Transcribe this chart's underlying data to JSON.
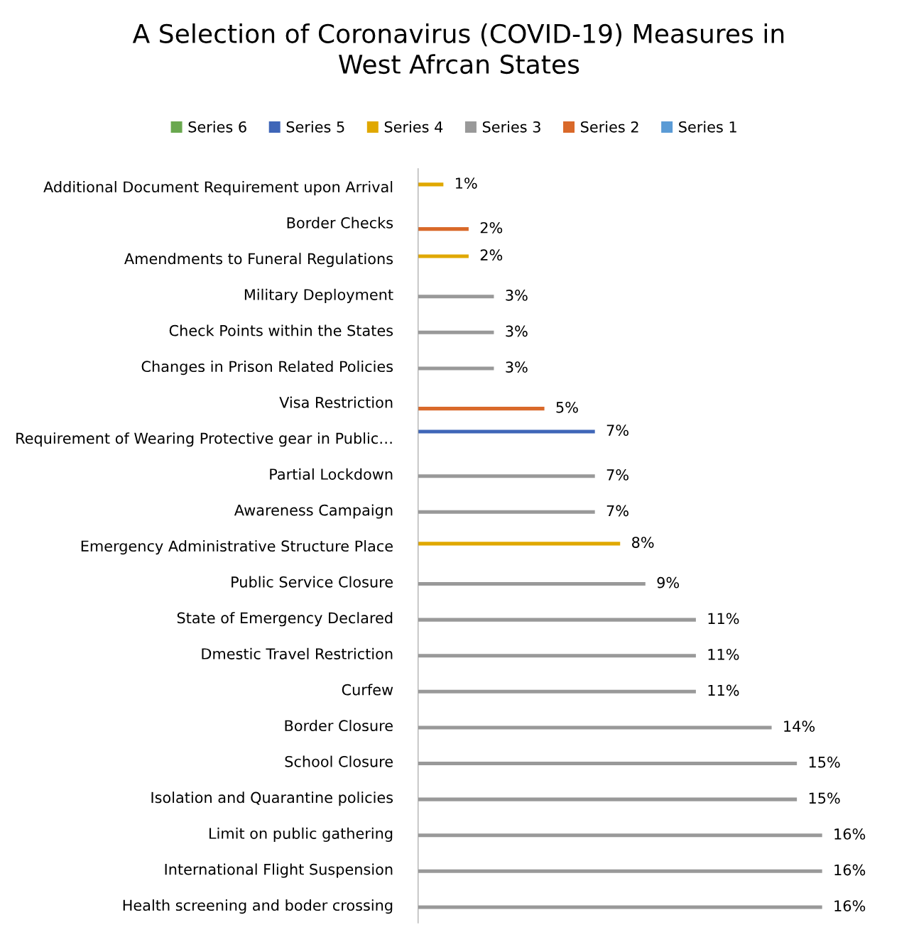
{
  "chart_data": {
    "type": "bar",
    "orientation": "horizontal",
    "title": "A Selection of Coronavirus (COVID-19) Measures in\nWest Afrcan States",
    "categories": [
      "Additional Document Requirement upon Arrival",
      "Border Checks",
      "Amendments to Funeral Regulations",
      "Military Deployment",
      "Check Points within the States",
      "Changes in Prison Related Policies",
      "Visa Restriction",
      "Requirement of Wearing Protective gear in Public…",
      "Partial Lockdown",
      "Awareness Campaign",
      "Emergency Administrative Structure Place",
      "Public Service Closure",
      "State of Emergency Declared",
      "Dmestic Travel Restriction",
      "Curfew",
      "Border Closure",
      "School Closure",
      "Isolation and Quarantine policies",
      "Limit on public gathering",
      "International Flight Suspension",
      "Health screening and boder crossing"
    ],
    "series": [
      {
        "name": "Series 1",
        "color": "#5b9bd5",
        "values": [
          null,
          null,
          null,
          null,
          null,
          null,
          null,
          null,
          null,
          null,
          null,
          null,
          null,
          null,
          null,
          null,
          null,
          null,
          null,
          null,
          null
        ],
        "value_labels": [
          null,
          null,
          null,
          null,
          null,
          null,
          null,
          null,
          null,
          null,
          null,
          null,
          null,
          null,
          null,
          null,
          null,
          null,
          null,
          null,
          null
        ]
      },
      {
        "name": "Series 2",
        "color": "#d9692a",
        "values": [
          null,
          2,
          null,
          null,
          null,
          null,
          5,
          null,
          null,
          null,
          null,
          null,
          null,
          null,
          null,
          null,
          null,
          null,
          null,
          null,
          null
        ],
        "value_labels": [
          null,
          "2%",
          null,
          null,
          null,
          null,
          "5%",
          null,
          null,
          null,
          null,
          null,
          null,
          null,
          null,
          null,
          null,
          null,
          null,
          null,
          null
        ]
      },
      {
        "name": "Series 3",
        "color": "#999999",
        "values": [
          null,
          null,
          null,
          3,
          3,
          3,
          null,
          null,
          7,
          7,
          null,
          9,
          11,
          11,
          11,
          14,
          15,
          15,
          16,
          16,
          16
        ],
        "value_labels": [
          null,
          null,
          null,
          "3%",
          "3%",
          "3%",
          null,
          null,
          "7%",
          "7%",
          null,
          "9%",
          "11%",
          "11%",
          "11%",
          "14%",
          "15%",
          "15%",
          "16%",
          "16%",
          "16%"
        ]
      },
      {
        "name": "Series 4",
        "color": "#e0a800",
        "values": [
          1,
          null,
          2,
          null,
          null,
          null,
          null,
          null,
          null,
          null,
          8,
          null,
          null,
          null,
          null,
          null,
          null,
          null,
          null,
          null,
          null
        ],
        "value_labels": [
          "1%",
          null,
          "2%",
          null,
          null,
          null,
          null,
          null,
          null,
          null,
          "8%",
          null,
          null,
          null,
          null,
          null,
          null,
          null,
          null,
          null,
          null
        ]
      },
      {
        "name": "Series 5",
        "color": "#3f66b8",
        "values": [
          null,
          null,
          null,
          null,
          null,
          null,
          null,
          7,
          null,
          null,
          null,
          null,
          null,
          null,
          null,
          null,
          null,
          null,
          null,
          null,
          null
        ],
        "value_labels": [
          null,
          null,
          null,
          null,
          null,
          null,
          null,
          "7%",
          null,
          null,
          null,
          null,
          null,
          null,
          null,
          null,
          null,
          null,
          null,
          null,
          null
        ]
      },
      {
        "name": "Series 6",
        "color": "#6aa84f",
        "values": [
          null,
          null,
          null,
          null,
          null,
          null,
          null,
          null,
          null,
          null,
          null,
          null,
          null,
          null,
          null,
          null,
          null,
          null,
          null,
          null,
          null
        ],
        "value_labels": [
          null,
          null,
          null,
          null,
          null,
          null,
          null,
          null,
          null,
          null,
          null,
          null,
          null,
          null,
          null,
          null,
          null,
          null,
          null,
          null,
          null
        ]
      }
    ],
    "legend": "top",
    "grid": false
  }
}
